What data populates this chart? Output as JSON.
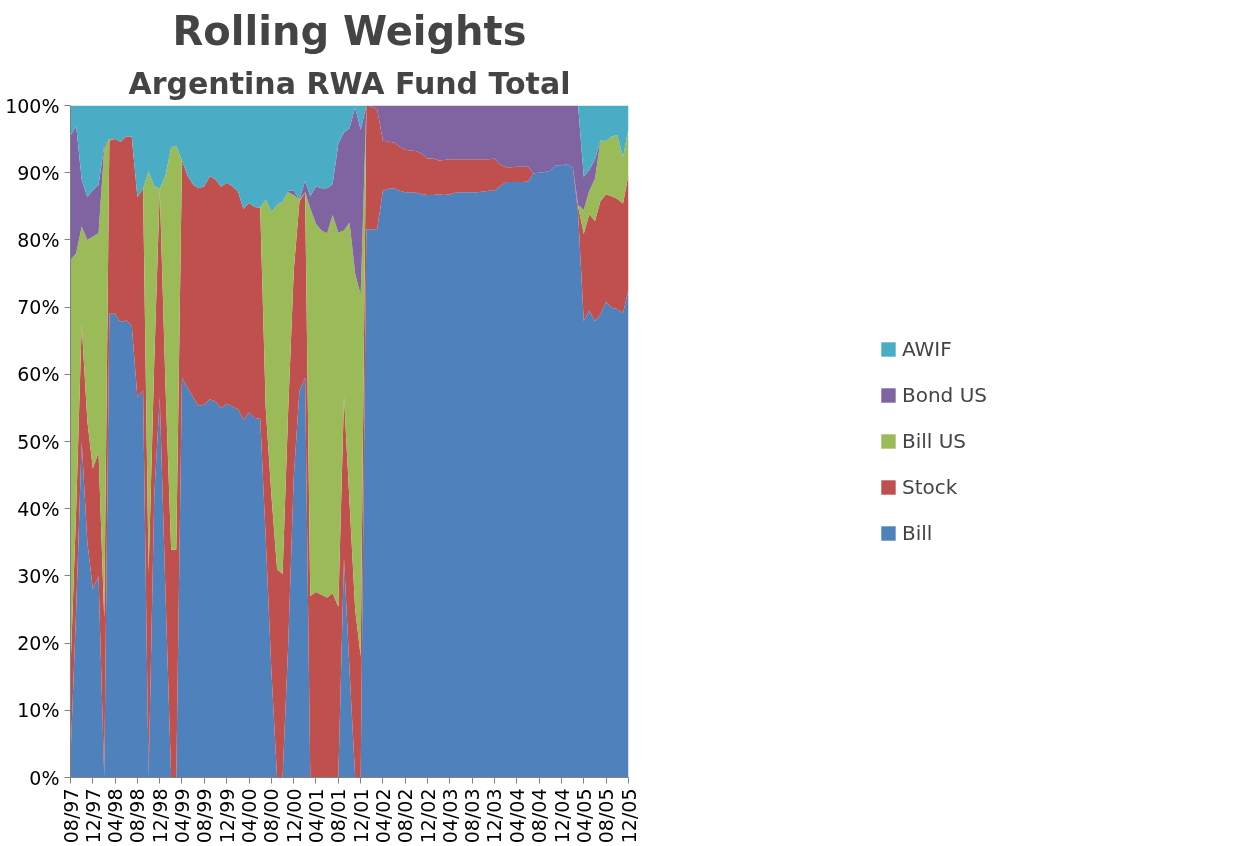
{
  "chart_data": {
    "type": "area",
    "stacked": true,
    "title": "Rolling Weights",
    "subtitle": "Argentina RWA Fund Total",
    "x": [
      "1997-08",
      "1997-09",
      "1997-10",
      "1997-11",
      "1997-12",
      "1998-01",
      "1998-02",
      "1998-03",
      "1998-04",
      "1998-05",
      "1998-06",
      "1998-07",
      "1998-08",
      "1998-09",
      "1998-10",
      "1998-11",
      "1998-12",
      "1999-01",
      "1999-02",
      "1999-03",
      "1999-04",
      "1999-05",
      "1999-06",
      "1999-07",
      "1999-08",
      "1999-09",
      "1999-10",
      "1999-11",
      "1999-12",
      "2000-01",
      "2000-02",
      "2000-03",
      "2000-04",
      "2000-05",
      "2000-06",
      "2000-07",
      "2000-08",
      "2000-09",
      "2000-10",
      "2000-11",
      "2000-12",
      "2001-01",
      "2001-02",
      "2001-03",
      "2001-04",
      "2001-05",
      "2001-06",
      "2001-07",
      "2001-08",
      "2001-09",
      "2001-10",
      "2001-11",
      "2001-12",
      "2002-01",
      "2002-02",
      "2002-03",
      "2002-04",
      "2002-05",
      "2002-06",
      "2002-07",
      "2002-08",
      "2002-09",
      "2002-10",
      "2002-11",
      "2002-12",
      "2003-01",
      "2003-02",
      "2003-03",
      "2003-04",
      "2003-05",
      "2003-06",
      "2003-07",
      "2003-08",
      "2003-09",
      "2003-10",
      "2003-11",
      "2003-12",
      "2004-01",
      "2004-02",
      "2004-03",
      "2004-04",
      "2004-05",
      "2004-06",
      "2004-07",
      "2004-08",
      "2004-09",
      "2004-10",
      "2004-11",
      "2004-12",
      "2005-01",
      "2005-02",
      "2005-03",
      "2005-04",
      "2005-05",
      "2005-06",
      "2005-07",
      "2005-08",
      "2005-09",
      "2005-10",
      "2005-11",
      "2005-12"
    ],
    "series": [
      {
        "name": "Bill",
        "color": "#4f81bd",
        "values": [
          3,
          25,
          50,
          35,
          28,
          30,
          0,
          69,
          69,
          67.8,
          68,
          67.3,
          56.6,
          57.6,
          0,
          42,
          56.6,
          27.6,
          0,
          0,
          59.5,
          58,
          56.6,
          55.3,
          55.5,
          56.3,
          55.9,
          55,
          55.6,
          55.2,
          54.8,
          53.2,
          54.3,
          53.5,
          53.4,
          35.6,
          15.8,
          0,
          0,
          20,
          44.8,
          57.5,
          59.5,
          0,
          0,
          0,
          0,
          0,
          0,
          32.6,
          16,
          0,
          0,
          81.6,
          81.6,
          81.6,
          87.3,
          87.6,
          87.7,
          87.3,
          87.1,
          87.1,
          87,
          86.8,
          86.7,
          86.7,
          86.8,
          86.7,
          86.8,
          87,
          87.1,
          87.1,
          87.1,
          87.1,
          87.2,
          87.3,
          87.3,
          88,
          88.6,
          88.6,
          88.6,
          88.6,
          88.7,
          89.9,
          90,
          90.1,
          90.3,
          91.1,
          91.1,
          91.3,
          90.7,
          84,
          67.9,
          69.5,
          67.9,
          68.9,
          70.8,
          69.9,
          69.7,
          69.1,
          72.6
        ]
      },
      {
        "name": "Stock",
        "color": "#c0504d",
        "values": [
          13,
          15,
          17.5,
          18,
          18,
          18.4,
          23.7,
          25.8,
          26,
          26.8,
          27.4,
          28.1,
          29.8,
          30,
          30.6,
          20,
          31,
          30.9,
          33.9,
          33.9,
          32.3,
          31.6,
          31.6,
          32.4,
          32.5,
          33.2,
          33.1,
          32.9,
          32.9,
          32.8,
          32.4,
          31.4,
          31.2,
          31.4,
          31.4,
          19.4,
          26.2,
          31,
          30.3,
          35,
          30.7,
          28.2,
          27.6,
          27,
          27.6,
          27.2,
          26.8,
          27.4,
          25.4,
          24.1,
          25,
          25,
          18,
          18.4,
          18.2,
          17.8,
          7.5,
          7,
          6.8,
          6.6,
          6.3,
          6.2,
          6.2,
          6,
          5.4,
          5.4,
          5,
          5.2,
          5.2,
          5,
          4.9,
          4.9,
          4.9,
          4.9,
          4.8,
          4.7,
          4.8,
          3.2,
          2.2,
          2.2,
          2.3,
          2.3,
          2.2,
          0,
          0,
          0,
          0,
          0,
          0,
          0,
          0,
          1,
          13,
          14.3,
          14.9,
          16.9,
          16,
          16.6,
          16.4,
          16.3,
          17.1
        ]
      },
      {
        "name": "Bill US",
        "color": "#9bbb59",
        "values": [
          61,
          38,
          14.5,
          27,
          34.5,
          32.6,
          69.9,
          0.2,
          0,
          0,
          0,
          0,
          0,
          0,
          59.6,
          26,
          0,
          31.1,
          59.9,
          60.1,
          0,
          0,
          0,
          0,
          0,
          0,
          0,
          0,
          0,
          0,
          0,
          0,
          0,
          0,
          0,
          31,
          42.2,
          54.2,
          55.4,
          32.1,
          11.2,
          0.3,
          0,
          57.7,
          54.8,
          54.2,
          54.2,
          56.3,
          55.7,
          24.7,
          41.6,
          50,
          53.8,
          0,
          0,
          0,
          0,
          0,
          0,
          0,
          0,
          0,
          0,
          0,
          0,
          0,
          0,
          0,
          0,
          0,
          0,
          0,
          0,
          0,
          0,
          0,
          0,
          0,
          0,
          0,
          0,
          0,
          0,
          0,
          0,
          0,
          0,
          0,
          0,
          0,
          0,
          0.2,
          3.6,
          3.5,
          6.3,
          9,
          7.9,
          8.9,
          9.5,
          6.9,
          6.9
        ]
      },
      {
        "name": "Bond US",
        "color": "#8064a2",
        "values": [
          18.5,
          19,
          7,
          6.4,
          6.9,
          7.2,
          0.4,
          0,
          0,
          0,
          0,
          0,
          0,
          0,
          0,
          0,
          0,
          0,
          0,
          0,
          0,
          0,
          0,
          0,
          0,
          0,
          0,
          0,
          0,
          0,
          0,
          0,
          0,
          0,
          0,
          0,
          0,
          0,
          0,
          0.2,
          0.6,
          0,
          1.7,
          1.8,
          5.6,
          6.3,
          6.7,
          4.6,
          13.2,
          14.6,
          14,
          24.7,
          24.6,
          0,
          0.2,
          0.6,
          5.2,
          5.4,
          5.5,
          6.1,
          6.6,
          6.7,
          6.8,
          7.2,
          7.9,
          7.9,
          8.2,
          8.1,
          8,
          8,
          8,
          8,
          8,
          8,
          8,
          8,
          7.9,
          8.8,
          9.2,
          9.2,
          9.1,
          9.1,
          9.1,
          10.1,
          10,
          9.9,
          9.7,
          8.9,
          8.9,
          8.7,
          9.3,
          14.8,
          4.9,
          3.1,
          2.9,
          0,
          0,
          0,
          0,
          0,
          0
        ]
      },
      {
        "name": "AWIF",
        "color": "#4bacc6",
        "values": [
          4.5,
          3,
          11,
          13.6,
          12.6,
          11.8,
          6,
          5,
          5,
          5.4,
          4.6,
          4.6,
          13.6,
          12.4,
          9.8,
          12,
          12.4,
          10.4,
          6.2,
          6,
          8.2,
          10.4,
          11.8,
          12.3,
          12,
          10.5,
          11,
          12.1,
          11.5,
          12,
          12.8,
          15.4,
          14.5,
          15.1,
          15.2,
          14,
          15.8,
          14.8,
          14.3,
          12.7,
          12.7,
          14,
          11.2,
          13.5,
          12,
          12.3,
          12.3,
          11.7,
          5.7,
          4,
          3.4,
          0.3,
          3.6,
          0,
          0,
          0,
          0,
          0,
          0,
          0,
          0,
          0,
          0,
          0,
          0,
          0,
          0,
          0,
          0,
          0,
          0,
          0,
          0,
          0,
          0,
          0,
          0,
          0,
          0,
          0,
          0,
          0,
          0,
          0,
          0,
          0,
          0,
          0,
          0,
          0,
          0,
          0,
          10.6,
          9.6,
          8,
          5.2,
          5.3,
          4.6,
          4.4,
          7.7,
          3.4
        ]
      }
    ],
    "xlim": [
      "1997-08",
      "2005-12"
    ],
    "xticks": [
      {
        "value": "1997-08",
        "label": "08/97"
      },
      {
        "value": "1997-12",
        "label": "12/97"
      },
      {
        "value": "1998-04",
        "label": "04/98"
      },
      {
        "value": "1998-08",
        "label": "08/98"
      },
      {
        "value": "1998-12",
        "label": "12/98"
      },
      {
        "value": "1999-04",
        "label": "04/99"
      },
      {
        "value": "1999-08",
        "label": "08/99"
      },
      {
        "value": "1999-12",
        "label": "12/99"
      },
      {
        "value": "2000-04",
        "label": "04/00"
      },
      {
        "value": "2000-08",
        "label": "08/00"
      },
      {
        "value": "2000-12",
        "label": "12/00"
      },
      {
        "value": "2001-04",
        "label": "04/01"
      },
      {
        "value": "2001-08",
        "label": "08/01"
      },
      {
        "value": "2001-12",
        "label": "12/01"
      },
      {
        "value": "2002-04",
        "label": "04/02"
      },
      {
        "value": "2002-08",
        "label": "08/02"
      },
      {
        "value": "2002-12",
        "label": "12/02"
      },
      {
        "value": "2003-04",
        "label": "04/03"
      },
      {
        "value": "2003-08",
        "label": "08/03"
      },
      {
        "value": "2003-12",
        "label": "12/03"
      },
      {
        "value": "2004-04",
        "label": "04/04"
      },
      {
        "value": "2004-08",
        "label": "08/04"
      },
      {
        "value": "2004-12",
        "label": "12/04"
      },
      {
        "value": "2005-04",
        "label": "04/05"
      },
      {
        "value": "2005-08",
        "label": "08/05"
      },
      {
        "value": "2005-12",
        "label": "12/05"
      }
    ],
    "ylim": [
      0,
      100
    ],
    "yticks": [
      {
        "value": 0,
        "label": "0%"
      },
      {
        "value": 10,
        "label": "10%"
      },
      {
        "value": 20,
        "label": "20%"
      },
      {
        "value": 30,
        "label": "30%"
      },
      {
        "value": 40,
        "label": "40%"
      },
      {
        "value": 50,
        "label": "50%"
      },
      {
        "value": 60,
        "label": "60%"
      },
      {
        "value": 70,
        "label": "70%"
      },
      {
        "value": 80,
        "label": "80%"
      },
      {
        "value": 90,
        "label": "90%"
      },
      {
        "value": 100,
        "label": "100%"
      }
    ],
    "grid": false,
    "legend": "right"
  }
}
